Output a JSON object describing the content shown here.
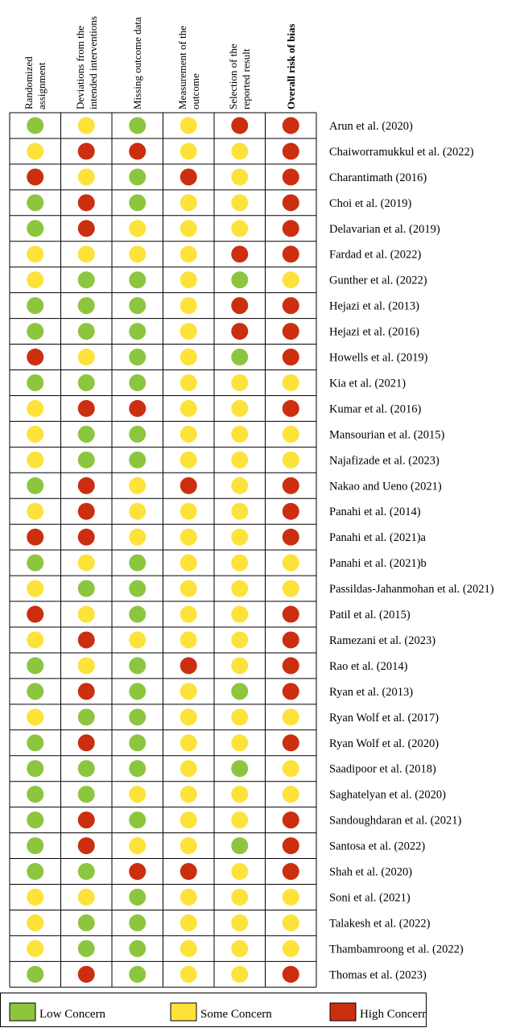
{
  "chart_data": {
    "type": "table",
    "columns": [
      "Randomized assignment",
      "Deviations from the intended interventions",
      "Missing outcome data",
      "Measurement of the outcome",
      "Selection of the reported result",
      "Overall risk of bias"
    ],
    "column_lines": [
      [
        "Randomized",
        "assignment"
      ],
      [
        "Deviations from the",
        "intended interventions"
      ],
      [
        "Missing outcome data"
      ],
      [
        "Measurement of the",
        "outcome"
      ],
      [
        "Selection of the",
        "reported result"
      ],
      [
        "Overall risk of bias"
      ]
    ],
    "levels": {
      "L": {
        "label": "Low Concern",
        "color": "#8cc63f"
      },
      "S": {
        "label": "Some Concern",
        "color": "#fde23a"
      },
      "H": {
        "label": "High Concern",
        "color": "#cc2e10"
      }
    },
    "rows": [
      {
        "study": "Arun et al. (2020)",
        "ratings": [
          "L",
          "S",
          "L",
          "S",
          "H",
          "H"
        ]
      },
      {
        "study": "Chaiworramukkul et al. (2022)",
        "ratings": [
          "S",
          "H",
          "H",
          "S",
          "S",
          "H"
        ]
      },
      {
        "study": "Charantimath (2016)",
        "ratings": [
          "H",
          "S",
          "L",
          "H",
          "S",
          "H"
        ]
      },
      {
        "study": "Choi et al. (2019)",
        "ratings": [
          "L",
          "H",
          "L",
          "S",
          "S",
          "H"
        ]
      },
      {
        "study": "Delavarian et al. (2019)",
        "ratings": [
          "L",
          "H",
          "S",
          "S",
          "S",
          "H"
        ]
      },
      {
        "study": "Fardad et al. (2022)",
        "ratings": [
          "S",
          "S",
          "S",
          "S",
          "H",
          "H"
        ]
      },
      {
        "study": "Gunther et al. (2022)",
        "ratings": [
          "S",
          "L",
          "L",
          "S",
          "L",
          "S"
        ]
      },
      {
        "study": "Hejazi et al. (2013)",
        "ratings": [
          "L",
          "L",
          "L",
          "S",
          "H",
          "H"
        ]
      },
      {
        "study": "Hejazi et al. (2016)",
        "ratings": [
          "L",
          "L",
          "L",
          "S",
          "H",
          "H"
        ]
      },
      {
        "study": "Howells et al. (2019)",
        "ratings": [
          "H",
          "S",
          "L",
          "S",
          "L",
          "H"
        ]
      },
      {
        "study": "Kia et al. (2021)",
        "ratings": [
          "L",
          "L",
          "L",
          "S",
          "S",
          "S"
        ]
      },
      {
        "study": "Kumar et al. (2016)",
        "ratings": [
          "S",
          "H",
          "H",
          "S",
          "S",
          "H"
        ]
      },
      {
        "study": "Mansourian et al. (2015)",
        "ratings": [
          "S",
          "L",
          "L",
          "S",
          "S",
          "S"
        ]
      },
      {
        "study": "Najafizade et al. (2023)",
        "ratings": [
          "S",
          "L",
          "L",
          "S",
          "S",
          "S"
        ]
      },
      {
        "study": "Nakao and Ueno (2021)",
        "ratings": [
          "L",
          "H",
          "S",
          "H",
          "S",
          "H"
        ]
      },
      {
        "study": "Panahi et al. (2014)",
        "ratings": [
          "S",
          "H",
          "S",
          "S",
          "S",
          "H"
        ]
      },
      {
        "study": "Panahi et al. (2021)a",
        "ratings": [
          "H",
          "H",
          "S",
          "S",
          "S",
          "H"
        ]
      },
      {
        "study": "Panahi et al. (2021)b",
        "ratings": [
          "L",
          "S",
          "L",
          "S",
          "S",
          "S"
        ]
      },
      {
        "study": "Passildas-Jahanmohan et al. (2021)",
        "ratings": [
          "S",
          "L",
          "L",
          "S",
          "S",
          "S"
        ]
      },
      {
        "study": "Patil et al. (2015)",
        "ratings": [
          "H",
          "S",
          "L",
          "S",
          "S",
          "H"
        ]
      },
      {
        "study": "Ramezani et al. (2023)",
        "ratings": [
          "S",
          "H",
          "S",
          "S",
          "S",
          "H"
        ]
      },
      {
        "study": "Rao et al. (2014)",
        "ratings": [
          "L",
          "S",
          "L",
          "H",
          "S",
          "H"
        ]
      },
      {
        "study": "Ryan et al. (2013)",
        "ratings": [
          "L",
          "H",
          "L",
          "S",
          "L",
          "H"
        ]
      },
      {
        "study": "Ryan Wolf et al. (2017)",
        "ratings": [
          "S",
          "L",
          "L",
          "S",
          "S",
          "S"
        ]
      },
      {
        "study": "Ryan Wolf et al. (2020)",
        "ratings": [
          "L",
          "H",
          "L",
          "S",
          "S",
          "H"
        ]
      },
      {
        "study": "Saadipoor et al. (2018)",
        "ratings": [
          "L",
          "L",
          "L",
          "S",
          "L",
          "S"
        ]
      },
      {
        "study": "Saghatelyan et al. (2020)",
        "ratings": [
          "L",
          "L",
          "S",
          "S",
          "S",
          "S"
        ]
      },
      {
        "study": "Sandoughdaran et al. (2021)",
        "ratings": [
          "L",
          "H",
          "L",
          "S",
          "S",
          "H"
        ]
      },
      {
        "study": "Santosa et al. (2022)",
        "ratings": [
          "L",
          "H",
          "S",
          "S",
          "L",
          "H"
        ]
      },
      {
        "study": "Shah et al. (2020)",
        "ratings": [
          "L",
          "L",
          "H",
          "H",
          "S",
          "H"
        ]
      },
      {
        "study": "Soni et al. (2021)",
        "ratings": [
          "S",
          "S",
          "L",
          "S",
          "S",
          "S"
        ]
      },
      {
        "study": "Talakesh et al. (2022)",
        "ratings": [
          "S",
          "L",
          "L",
          "S",
          "S",
          "S"
        ]
      },
      {
        "study": "Thambamroong et al. (2022)",
        "ratings": [
          "S",
          "L",
          "L",
          "S",
          "S",
          "S"
        ]
      },
      {
        "study": "Thomas et al. (2023)",
        "ratings": [
          "L",
          "H",
          "L",
          "S",
          "S",
          "H"
        ]
      }
    ],
    "legend": [
      "Low Concern",
      "Some Concern",
      "High Concern"
    ],
    "legend_placement": "bottom"
  }
}
